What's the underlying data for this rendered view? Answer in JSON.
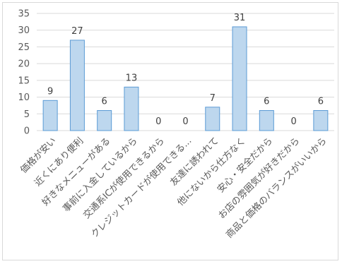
{
  "chart_data": {
    "type": "bar",
    "title": "",
    "xlabel": "",
    "ylabel": "",
    "ylim": [
      0,
      35
    ],
    "yticks": [
      0,
      5,
      10,
      15,
      20,
      25,
      30,
      35
    ],
    "grid": true,
    "categories": [
      "価格が安い",
      "近くにあり便利",
      "好きなメニューがある",
      "事前に入金しているから",
      "交通系ICが使用できるから",
      "クレジットカードが使用できる...",
      "友達に誘われて",
      "他にないから仕方なく",
      "安心・安全だから",
      "お店の雰囲気が好きだから",
      "商品と価格のバランスがいいから"
    ],
    "values": [
      9,
      27,
      6,
      13,
      0,
      0,
      7,
      31,
      6,
      0,
      6
    ],
    "bar_color": "#bdd7ee",
    "bar_border_color": "#5b9bd5",
    "gridline_color": "#d9d9d9"
  }
}
